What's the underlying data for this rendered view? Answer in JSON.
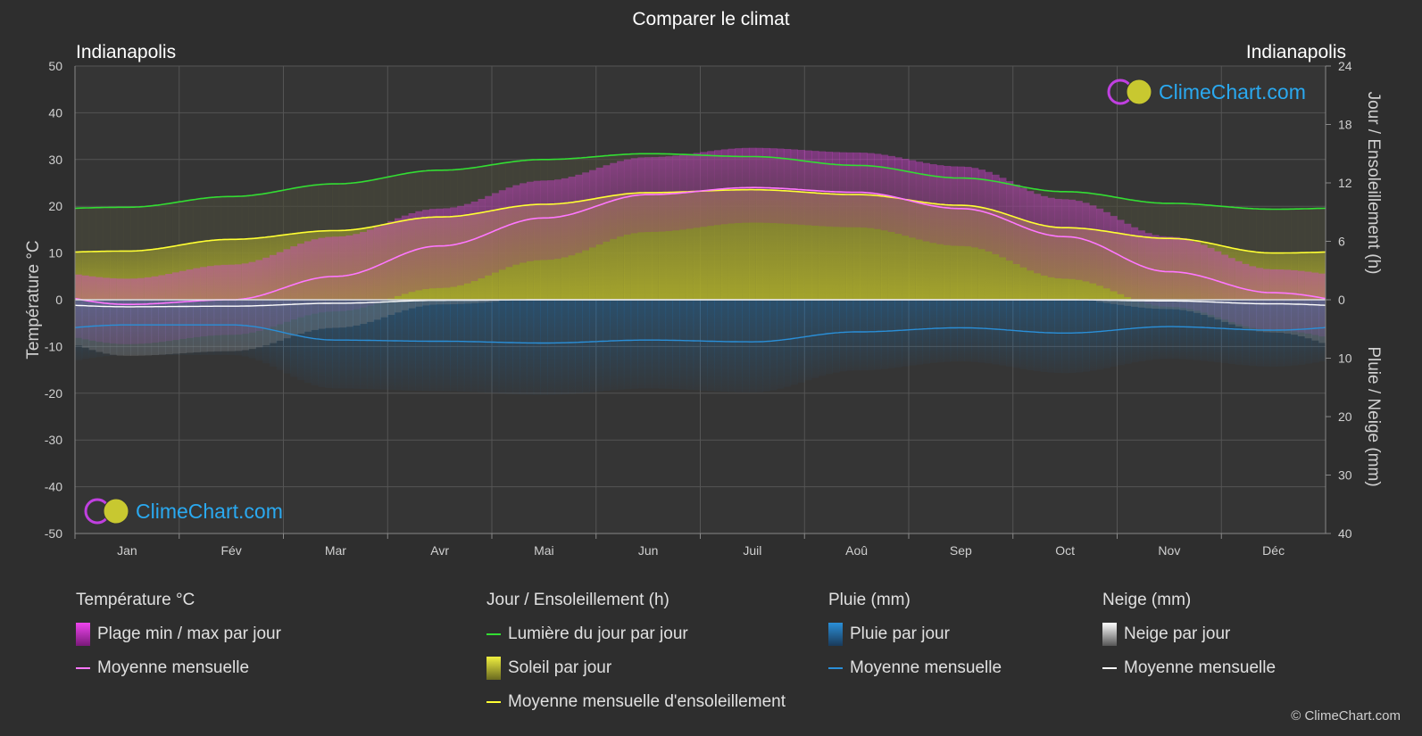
{
  "title": "Comparer le climat",
  "location_left": "Indianapolis",
  "location_right": "Indianapolis",
  "brand": "ClimeChart.com",
  "copyright": "© ClimeChart.com",
  "legend": {
    "temperature": {
      "title": "Température °C",
      "range": "Plage min / max par jour",
      "mean": "Moyenne mensuelle"
    },
    "sun": {
      "title": "Jour / Ensoleillement (h)",
      "daylight": "Lumière du jour par jour",
      "sunshine": "Soleil par jour",
      "sun_mean": "Moyenne mensuelle d'ensoleillement"
    },
    "rain": {
      "title": "Pluie (mm)",
      "daily": "Pluie par jour",
      "mean": "Moyenne mensuelle"
    },
    "snow": {
      "title": "Neige (mm)",
      "daily": "Neige par jour",
      "mean": "Moyenne mensuelle"
    }
  },
  "colors": {
    "temp_range": "#cc33cc",
    "temp_mean": "#ff77ff",
    "daylight": "#33dd33",
    "sunshine": "#bdbd2a",
    "sun_mean": "#ffff33",
    "rain": "#2a8fd8",
    "rain_mean": "#2a8fd8",
    "snow": "#dddddd",
    "snow_mean": "#ffffff"
  },
  "chart_data": {
    "type": "line",
    "categories": [
      "Jan",
      "Fév",
      "Mar",
      "Avr",
      "Mai",
      "Jun",
      "Juil",
      "Aoû",
      "Sep",
      "Oct",
      "Nov",
      "Déc"
    ],
    "y_left": {
      "label": "Température °C",
      "ticks": [
        50,
        40,
        30,
        20,
        10,
        0,
        -10,
        -20,
        -30,
        -40,
        -50
      ],
      "range": [
        -50,
        50
      ]
    },
    "y_right_top": {
      "label": "Jour / Ensoleillement (h)",
      "ticks": [
        24,
        18,
        12,
        6,
        0
      ],
      "range": [
        0,
        24
      ]
    },
    "y_right_bottom": {
      "label": "Pluie / Neige (mm)",
      "ticks": [
        0,
        10,
        20,
        30,
        40
      ],
      "range": [
        0,
        40
      ]
    },
    "grid": true,
    "series": [
      {
        "name": "Lumière du jour par jour",
        "axis": "sun_hours",
        "values": [
          9.5,
          10.6,
          11.9,
          13.3,
          14.4,
          15.0,
          14.7,
          13.8,
          12.5,
          11.1,
          9.9,
          9.3
        ]
      },
      {
        "name": "Moyenne mensuelle d'ensoleillement",
        "axis": "sun_hours",
        "values": [
          5.0,
          6.2,
          7.1,
          8.5,
          9.8,
          11.0,
          11.3,
          10.8,
          9.7,
          7.4,
          6.3,
          4.8
        ]
      },
      {
        "name": "Moyenne mensuelle",
        "kind": "temperature",
        "axis": "temperature_c",
        "values": [
          -1.0,
          0.0,
          5.0,
          11.5,
          17.5,
          22.5,
          24.0,
          23.0,
          19.5,
          13.5,
          6.0,
          1.5
        ]
      },
      {
        "name": "Plage min / max par jour",
        "kind": "temperature_max",
        "axis": "temperature_c",
        "values": [
          2.0,
          5.0,
          11.0,
          17.0,
          23.0,
          28.0,
          30.0,
          29.0,
          26.0,
          19.0,
          11.0,
          4.0
        ]
      },
      {
        "name": "Plage min / max par jour",
        "kind": "temperature_min",
        "axis": "temperature_c",
        "values": [
          -7.0,
          -5.0,
          0.0,
          5.0,
          11.0,
          17.0,
          19.0,
          18.0,
          14.0,
          7.0,
          1.0,
          -4.0
        ]
      },
      {
        "name": "Moyenne mensuelle",
        "kind": "rain",
        "axis": "precip_mm",
        "values": [
          4.3,
          4.3,
          6.9,
          7.1,
          7.4,
          6.9,
          7.2,
          5.5,
          4.8,
          5.7,
          4.6,
          5.2
        ]
      },
      {
        "name": "Moyenne mensuelle",
        "kind": "snow",
        "axis": "precip_mm",
        "values": [
          1.2,
          1.1,
          0.6,
          0.1,
          0.0,
          0.0,
          0.0,
          0.0,
          0.0,
          0.0,
          0.2,
          0.7
        ]
      }
    ]
  }
}
